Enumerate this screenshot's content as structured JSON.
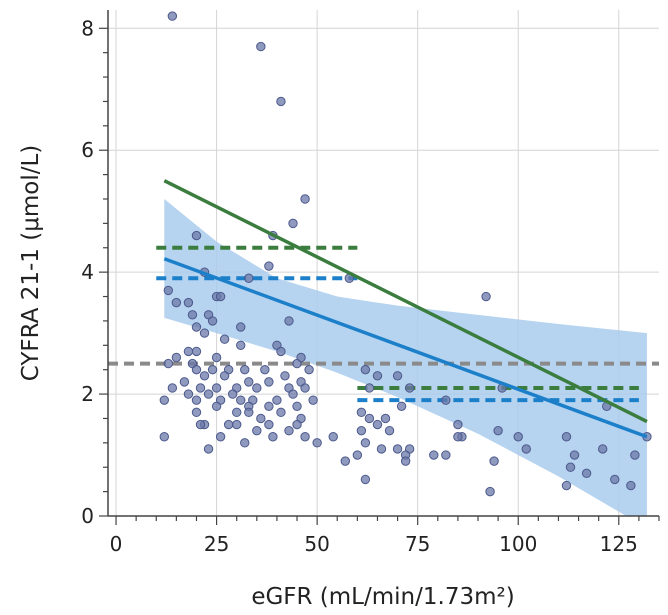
{
  "chart_data": {
    "type": "scatter",
    "title": "",
    "xlabel": "eGFR (mL/min/1.73m²)",
    "ylabel": "CYFRA 21-1 (μmol/L)",
    "xlim": [
      -2,
      135
    ],
    "ylim": [
      0,
      8.3
    ],
    "xticks": [
      0,
      25,
      50,
      75,
      100,
      125
    ],
    "yticks": [
      0,
      2,
      4,
      6,
      8
    ],
    "grid": true,
    "colors": {
      "points": "#6b78a8",
      "point_stroke": "#4c5a8c",
      "regression_blue": "#1c7fc9",
      "regression_green": "#3a7d3e",
      "confidence_band": "#a9cbec",
      "reference_gray": "#8a8a8a",
      "grid": "#d4d4d4"
    },
    "series": [
      {
        "type": "scatter",
        "points": [
          [
            14,
            8.2
          ],
          [
            36,
            7.7
          ],
          [
            41,
            6.8
          ],
          [
            47,
            5.2
          ],
          [
            44,
            4.8
          ],
          [
            39,
            4.6
          ],
          [
            20,
            4.6
          ],
          [
            22,
            4.0
          ],
          [
            38,
            4.1
          ],
          [
            33,
            3.9
          ],
          [
            13,
            3.7
          ],
          [
            25,
            3.6
          ],
          [
            26,
            3.6
          ],
          [
            58,
            3.9
          ],
          [
            92,
            3.6
          ],
          [
            18,
            3.5
          ],
          [
            19,
            3.3
          ],
          [
            23,
            3.3
          ],
          [
            15,
            3.5
          ],
          [
            43,
            3.2
          ],
          [
            20,
            3.1
          ],
          [
            24,
            3.2
          ],
          [
            31,
            3.1
          ],
          [
            22,
            3.0
          ],
          [
            27,
            2.9
          ],
          [
            31,
            2.8
          ],
          [
            40,
            2.8
          ],
          [
            20,
            2.7
          ],
          [
            25,
            2.6
          ],
          [
            41,
            2.7
          ],
          [
            18,
            2.7
          ],
          [
            46,
            2.6
          ],
          [
            15,
            2.6
          ],
          [
            19,
            2.5
          ],
          [
            13,
            2.5
          ],
          [
            20,
            2.4
          ],
          [
            24,
            2.4
          ],
          [
            28,
            2.4
          ],
          [
            32,
            2.4
          ],
          [
            37,
            2.4
          ],
          [
            45,
            2.5
          ],
          [
            48,
            2.4
          ],
          [
            62,
            2.4
          ],
          [
            65,
            2.3
          ],
          [
            70,
            2.3
          ],
          [
            17,
            2.2
          ],
          [
            22,
            2.3
          ],
          [
            27,
            2.3
          ],
          [
            33,
            2.2
          ],
          [
            38,
            2.2
          ],
          [
            42,
            2.3
          ],
          [
            46,
            2.2
          ],
          [
            14,
            2.1
          ],
          [
            21,
            2.1
          ],
          [
            25,
            2.1
          ],
          [
            30,
            2.1
          ],
          [
            35,
            2.1
          ],
          [
            43,
            2.1
          ],
          [
            47,
            2.1
          ],
          [
            63,
            2.1
          ],
          [
            73,
            2.1
          ],
          [
            18,
            2.0
          ],
          [
            23,
            2.0
          ],
          [
            29,
            2.0
          ],
          [
            34,
            1.9
          ],
          [
            40,
            1.9
          ],
          [
            44,
            2.0
          ],
          [
            49,
            1.9
          ],
          [
            12,
            1.9
          ],
          [
            20,
            1.9
          ],
          [
            26,
            1.9
          ],
          [
            31,
            1.9
          ],
          [
            38,
            1.8
          ],
          [
            45,
            1.8
          ],
          [
            61,
            1.7
          ],
          [
            71,
            1.8
          ],
          [
            82,
            1.9
          ],
          [
            96,
            2.1
          ],
          [
            20,
            1.7
          ],
          [
            25,
            1.8
          ],
          [
            30,
            1.7
          ],
          [
            33,
            1.8
          ],
          [
            36,
            1.6
          ],
          [
            41,
            1.7
          ],
          [
            46,
            1.6
          ],
          [
            22,
            1.5
          ],
          [
            28,
            1.5
          ],
          [
            33,
            1.7
          ],
          [
            38,
            1.5
          ],
          [
            45,
            1.5
          ],
          [
            63,
            1.6
          ],
          [
            65,
            1.5
          ],
          [
            67,
            1.6
          ],
          [
            85,
            1.5
          ],
          [
            21,
            1.5
          ],
          [
            30,
            1.5
          ],
          [
            35,
            1.4
          ],
          [
            43,
            1.4
          ],
          [
            47,
            1.3
          ],
          [
            54,
            1.3
          ],
          [
            61,
            1.4
          ],
          [
            68,
            1.4
          ],
          [
            86,
            1.3
          ],
          [
            95,
            1.4
          ],
          [
            100,
            1.3
          ],
          [
            112,
            1.3
          ],
          [
            122,
            1.8
          ],
          [
            12,
            1.3
          ],
          [
            26,
            1.3
          ],
          [
            32,
            1.2
          ],
          [
            39,
            1.3
          ],
          [
            50,
            1.2
          ],
          [
            62,
            1.2
          ],
          [
            66,
            1.1
          ],
          [
            70,
            1.1
          ],
          [
            73,
            1.1
          ],
          [
            85,
            1.3
          ],
          [
            102,
            1.1
          ],
          [
            114,
            1.0
          ],
          [
            121,
            1.1
          ],
          [
            23,
            1.1
          ],
          [
            57,
            0.9
          ],
          [
            60,
            1.0
          ],
          [
            72,
            1.0
          ],
          [
            79,
            1.0
          ],
          [
            82,
            1.0
          ],
          [
            94,
            0.9
          ],
          [
            113,
            0.8
          ],
          [
            117,
            0.7
          ],
          [
            129,
            1.0
          ],
          [
            62,
            0.6
          ],
          [
            72,
            0.9
          ],
          [
            112,
            0.5
          ],
          [
            124,
            0.6
          ],
          [
            128,
            0.5
          ],
          [
            93,
            0.4
          ],
          [
            132,
            1.3
          ]
        ]
      },
      {
        "type": "line",
        "points": [
          [
            12,
            5.5
          ],
          [
            132,
            1.55
          ]
        ]
      },
      {
        "type": "line",
        "points": [
          [
            12,
            4.22
          ],
          [
            132,
            1.3
          ]
        ]
      },
      {
        "type": "line",
        "points": [
          [
            10,
            4.4
          ],
          [
            60,
            4.4
          ]
        ]
      },
      {
        "type": "line",
        "points": [
          [
            10,
            3.9
          ],
          [
            60,
            3.9
          ]
        ]
      },
      {
        "type": "line",
        "points": [
          [
            60,
            2.1
          ],
          [
            130,
            2.1
          ]
        ]
      },
      {
        "type": "line",
        "points": [
          [
            60,
            1.9
          ],
          [
            130,
            1.9
          ]
        ]
      },
      {
        "type": "line",
        "points": [
          [
            -2,
            2.5
          ],
          [
            135,
            2.5
          ]
        ]
      }
    ],
    "confidence_band": {
      "upper": [
        [
          12,
          5.2
        ],
        [
          25,
          4.5
        ],
        [
          40,
          3.9
        ],
        [
          55,
          3.6
        ],
        [
          70,
          3.45
        ],
        [
          90,
          3.3
        ],
        [
          110,
          3.15
        ],
        [
          132,
          3.0
        ]
      ],
      "lower": [
        [
          12,
          3.25
        ],
        [
          25,
          3.0
        ],
        [
          40,
          2.7
        ],
        [
          55,
          2.35
        ],
        [
          70,
          1.95
        ],
        [
          90,
          1.35
        ],
        [
          110,
          0.65
        ],
        [
          132,
          -0.2
        ]
      ]
    }
  }
}
